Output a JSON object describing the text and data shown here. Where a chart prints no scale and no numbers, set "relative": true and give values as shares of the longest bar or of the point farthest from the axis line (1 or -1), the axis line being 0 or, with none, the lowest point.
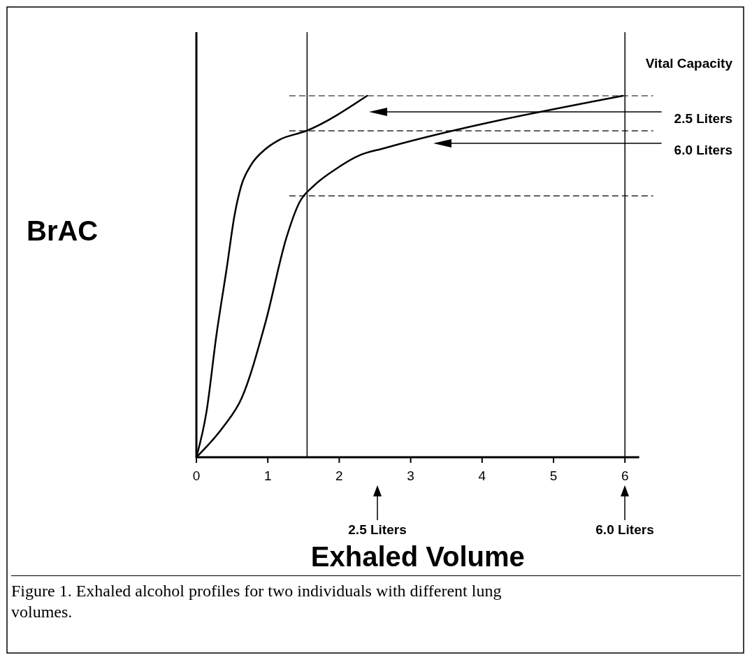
{
  "chart_data": {
    "type": "line",
    "relative": true,
    "xlabel": "Exhaled Volume",
    "ylabel": "BrAC",
    "xlim": [
      0,
      6.2
    ],
    "xticks": [
      0,
      1,
      2,
      3,
      4,
      5,
      6
    ],
    "line_style": "solid",
    "series": [
      {
        "color": "#000000",
        "x": [
          0,
          0.14,
          0.28,
          0.43,
          0.53,
          0.63,
          0.77,
          0.97,
          1.16,
          1.54,
          2.39
        ],
        "values": [
          0,
          0.124,
          0.337,
          0.53,
          0.665,
          0.752,
          0.81,
          0.853,
          0.878,
          0.903,
          1.0
        ]
      },
      {
        "color": "#000000",
        "x": [
          0,
          0.38,
          0.63,
          0.97,
          1.26,
          1.44,
          1.65,
          1.95,
          2.29,
          2.63,
          5.97
        ],
        "values": [
          0,
          0.085,
          0.162,
          0.375,
          0.607,
          0.704,
          0.752,
          0.797,
          0.836,
          0.855,
          1.0
        ]
      }
    ],
    "ref_lines": [
      {
        "axis": "x",
        "value": 1.55,
        "color": "#000000",
        "line_style": "solid"
      },
      {
        "axis": "x",
        "value": 6,
        "color": "#000000",
        "line_style": "solid"
      },
      {
        "axis": "y",
        "value": 1,
        "label": "Vital Capacity",
        "color": "#000000",
        "line_style": "dashed"
      },
      {
        "axis": "y",
        "value": 0.903,
        "color": "#000000",
        "line_style": "dashed"
      },
      {
        "axis": "y",
        "value": 0.723,
        "color": "#000000",
        "line_style": "dashed"
      }
    ],
    "annotations": [
      "2.5 Liters",
      "6.0 Liters",
      "2.5 Liters",
      "6.0 Liters",
      "Figure 1. Exhaled alcohol profiles for two individuals with different lung volumes."
    ]
  }
}
